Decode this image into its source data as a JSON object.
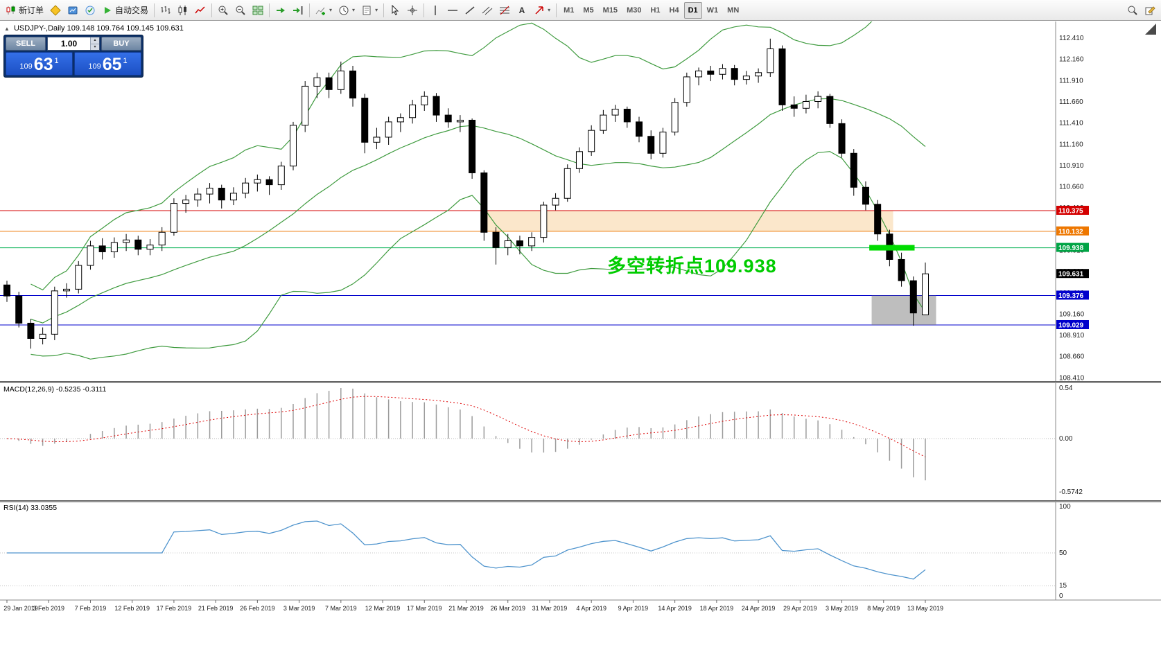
{
  "toolbar": {
    "items": [
      {
        "name": "new-order-button",
        "icon": "new-order-icon",
        "label": "新订单"
      },
      {
        "name": "metaeditor-button",
        "icon": "metaeditor-icon"
      },
      {
        "name": "market-button",
        "icon": "market-icon"
      },
      {
        "name": "signals-button",
        "icon": "signals-icon"
      },
      {
        "name": "autotrading-button",
        "icon": "autotrading-icon",
        "label": "自动交易"
      },
      {
        "type": "sep"
      },
      {
        "name": "bars-chart-button",
        "icon": "bar-chart-icon"
      },
      {
        "name": "candlestick-chart-button",
        "icon": "candlestick-chart-icon"
      },
      {
        "name": "line-chart-button",
        "icon": "line-chart-icon"
      },
      {
        "type": "sep"
      },
      {
        "name": "zoom-in-button",
        "icon": "zoom-in-icon"
      },
      {
        "name": "zoom-out-button",
        "icon": "zoom-out-icon"
      },
      {
        "name": "tile-windows-button",
        "icon": "tile-windows-icon"
      },
      {
        "type": "sep"
      },
      {
        "name": "auto-scroll-button",
        "icon": "auto-scroll-icon"
      },
      {
        "name": "chart-shift-button",
        "icon": "chart-shift-icon"
      },
      {
        "type": "sep"
      },
      {
        "name": "indicators-button",
        "icon": "indicators-icon",
        "dropdown": true
      },
      {
        "name": "periods-button",
        "icon": "clock-icon",
        "dropdown": true
      },
      {
        "name": "templates-button",
        "icon": "template-icon",
        "dropdown": true
      },
      {
        "type": "sep"
      },
      {
        "name": "cursor-button",
        "icon": "cursor-icon"
      },
      {
        "name": "crosshair-button",
        "icon": "crosshair-icon"
      },
      {
        "type": "sep"
      },
      {
        "name": "vertical-line-button",
        "icon": "vertical-line-icon"
      },
      {
        "name": "horizontal-line-button",
        "icon": "horizontal-line-icon"
      },
      {
        "name": "trendline-button",
        "icon": "trendline-icon"
      },
      {
        "name": "channel-button",
        "icon": "channel-icon"
      },
      {
        "name": "fibonacci-button",
        "icon": "fibonacci-icon"
      },
      {
        "name": "text-button",
        "icon": "text-icon"
      },
      {
        "name": "arrows-button",
        "icon": "arrow-icon",
        "dropdown": true
      },
      {
        "type": "sep"
      },
      {
        "name": "tf-m1-button",
        "label": "M1",
        "tf": true
      },
      {
        "name": "tf-m5-button",
        "label": "M5",
        "tf": true
      },
      {
        "name": "tf-m15-button",
        "label": "M15",
        "tf": true
      },
      {
        "name": "tf-m30-button",
        "label": "M30",
        "tf": true
      },
      {
        "name": "tf-h1-button",
        "label": "H1",
        "tf": true
      },
      {
        "name": "tf-h4-button",
        "label": "H4",
        "tf": true
      },
      {
        "name": "tf-d1-button",
        "label": "D1",
        "tf": true,
        "active": true
      },
      {
        "name": "tf-w1-button",
        "label": "W1",
        "tf": true
      },
      {
        "name": "tf-mn-button",
        "label": "MN",
        "tf": true
      },
      {
        "type": "spacer"
      },
      {
        "name": "search-button",
        "icon": "search-icon"
      },
      {
        "name": "compose-button",
        "icon": "compose-icon"
      }
    ]
  },
  "quote_bar": {
    "marker": "▲",
    "symbol": "USDJPY-,Daily",
    "ohlc": "109.148 109.764 109.145 109.631"
  },
  "one_click": {
    "sell_label": "SELL",
    "buy_label": "BUY",
    "volume": "1.00",
    "sell": {
      "prefix": "109",
      "big": "63",
      "sup": "1"
    },
    "buy": {
      "prefix": "109",
      "big": "65",
      "sup": "1"
    }
  },
  "annotation": {
    "text": "多空转折点109.938",
    "color": "#00cc00"
  },
  "indicators": {
    "macd": "MACD(12,26,9) -0.5235 -0.3111",
    "rsi": "RSI(14) 33.0355"
  },
  "chart_data": {
    "type": "candlestick",
    "symbol": "USDJPY",
    "timeframe": "Daily",
    "candles": [
      [
        109.5,
        109.55,
        109.3,
        109.37
      ],
      [
        109.37,
        109.42,
        109.0,
        109.05
      ],
      [
        109.05,
        109.1,
        108.75,
        108.87
      ],
      [
        108.87,
        109.0,
        108.8,
        108.92
      ],
      [
        108.92,
        109.48,
        108.85,
        109.43
      ],
      [
        109.43,
        109.52,
        109.35,
        109.45
      ],
      [
        109.45,
        109.78,
        109.4,
        109.73
      ],
      [
        109.73,
        110.02,
        109.68,
        109.96
      ],
      [
        109.96,
        110.05,
        109.8,
        109.89
      ],
      [
        109.89,
        110.06,
        109.82,
        110.0
      ],
      [
        110.0,
        110.1,
        109.9,
        110.03
      ],
      [
        110.03,
        110.08,
        109.85,
        109.92
      ],
      [
        109.92,
        110.04,
        109.85,
        109.97
      ],
      [
        109.97,
        110.18,
        109.9,
        110.12
      ],
      [
        110.12,
        110.52,
        110.08,
        110.46
      ],
      [
        110.46,
        110.56,
        110.35,
        110.5
      ],
      [
        110.5,
        110.64,
        110.42,
        110.57
      ],
      [
        110.57,
        110.7,
        110.46,
        110.64
      ],
      [
        110.64,
        110.68,
        110.4,
        110.5
      ],
      [
        110.5,
        110.65,
        110.44,
        110.58
      ],
      [
        110.58,
        110.76,
        110.52,
        110.7
      ],
      [
        110.7,
        110.8,
        110.6,
        110.74
      ],
      [
        110.74,
        110.78,
        110.56,
        110.68
      ],
      [
        110.68,
        110.95,
        110.62,
        110.9
      ],
      [
        110.9,
        111.42,
        110.85,
        111.38
      ],
      [
        111.38,
        111.9,
        111.3,
        111.84
      ],
      [
        111.84,
        112.0,
        111.7,
        111.94
      ],
      [
        111.94,
        112.0,
        111.7,
        111.8
      ],
      [
        111.8,
        112.13,
        111.75,
        112.02
      ],
      [
        112.02,
        112.08,
        111.6,
        111.7
      ],
      [
        111.7,
        111.75,
        111.05,
        111.18
      ],
      [
        111.18,
        111.35,
        111.1,
        111.24
      ],
      [
        111.24,
        111.48,
        111.15,
        111.42
      ],
      [
        111.42,
        111.52,
        111.3,
        111.47
      ],
      [
        111.47,
        111.68,
        111.4,
        111.62
      ],
      [
        111.62,
        111.78,
        111.55,
        111.72
      ],
      [
        111.72,
        111.76,
        111.42,
        111.5
      ],
      [
        111.5,
        111.58,
        111.35,
        111.42
      ],
      [
        111.42,
        111.5,
        111.3,
        111.44
      ],
      [
        111.44,
        111.46,
        110.75,
        110.82
      ],
      [
        110.82,
        110.85,
        110.02,
        110.12
      ],
      [
        110.12,
        110.18,
        109.74,
        109.94
      ],
      [
        109.94,
        110.1,
        109.85,
        110.02
      ],
      [
        110.02,
        110.08,
        109.86,
        109.96
      ],
      [
        109.96,
        110.12,
        109.9,
        110.06
      ],
      [
        110.06,
        110.48,
        110.0,
        110.44
      ],
      [
        110.44,
        110.58,
        110.38,
        110.52
      ],
      [
        110.52,
        110.92,
        110.48,
        110.87
      ],
      [
        110.87,
        111.12,
        110.82,
        111.07
      ],
      [
        111.07,
        111.38,
        111.02,
        111.32
      ],
      [
        111.32,
        111.56,
        111.28,
        111.5
      ],
      [
        111.5,
        111.62,
        111.42,
        111.57
      ],
      [
        111.57,
        111.6,
        111.35,
        111.42
      ],
      [
        111.42,
        111.48,
        111.18,
        111.25
      ],
      [
        111.25,
        111.32,
        110.98,
        111.05
      ],
      [
        111.05,
        111.35,
        111.0,
        111.3
      ],
      [
        111.3,
        111.7,
        111.26,
        111.65
      ],
      [
        111.65,
        112.0,
        111.6,
        111.95
      ],
      [
        111.95,
        112.06,
        111.85,
        112.02
      ],
      [
        112.02,
        112.08,
        111.9,
        111.98
      ],
      [
        111.98,
        112.1,
        111.92,
        112.05
      ],
      [
        112.05,
        112.09,
        111.85,
        111.92
      ],
      [
        111.92,
        112.02,
        111.86,
        111.96
      ],
      [
        111.96,
        112.05,
        111.88,
        112.0
      ],
      [
        112.0,
        112.4,
        111.95,
        112.28
      ],
      [
        112.28,
        112.32,
        111.55,
        111.62
      ],
      [
        111.62,
        111.72,
        111.48,
        111.58
      ],
      [
        111.58,
        111.74,
        111.52,
        111.66
      ],
      [
        111.66,
        111.78,
        111.58,
        111.72
      ],
      [
        111.72,
        111.75,
        111.35,
        111.4
      ],
      [
        111.4,
        111.45,
        111.0,
        111.05
      ],
      [
        111.05,
        111.1,
        110.55,
        110.65
      ],
      [
        110.65,
        110.72,
        110.38,
        110.45
      ],
      [
        110.45,
        110.5,
        110.02,
        110.1
      ],
      [
        110.1,
        110.15,
        109.72,
        109.8
      ],
      [
        109.8,
        109.88,
        109.48,
        109.55
      ],
      [
        109.55,
        109.6,
        109.02,
        109.17
      ],
      [
        109.148,
        109.764,
        109.145,
        109.631
      ]
    ],
    "dates": [
      "29 Jan 2019",
      "3 Feb 2019",
      "7 Feb 2019",
      "12 Feb 2019",
      "17 Feb 2019",
      "21 Feb 2019",
      "26 Feb 2019",
      "3 Mar 2019",
      "7 Mar 2019",
      "12 Mar 2019",
      "17 Mar 2019",
      "21 Mar 2019",
      "26 Mar 2019",
      "31 Mar 2019",
      "4 Apr 2019",
      "9 Apr 2019",
      "14 Apr 2019",
      "18 Apr 2019",
      "24 Apr 2019",
      "29 Apr 2019",
      "3 May 2019",
      "8 May 2019",
      "13 May 2019"
    ],
    "levels": [
      {
        "price": 110.375,
        "color": "#d40000"
      },
      {
        "price": 110.132,
        "color": "#ee7700"
      },
      {
        "price": 109.938,
        "color": "#00b050"
      },
      {
        "price": 109.376,
        "color": "#0000cc"
      },
      {
        "price": 109.029,
        "color": "#0000cc"
      }
    ],
    "price_tags": [
      {
        "label": "110.375",
        "price": 110.375,
        "color": "#d40000"
      },
      {
        "label": "110.132",
        "price": 110.132,
        "color": "#ee7700"
      },
      {
        "label": "109.938",
        "price": 109.938,
        "color": "#00a445"
      },
      {
        "label": "109.631",
        "price": 109.631,
        "color": "#000000"
      },
      {
        "label": "109.376",
        "price": 109.376,
        "color": "#0000cc"
      },
      {
        "label": "109.029",
        "price": 109.029,
        "color": "#0000cc"
      }
    ],
    "price_axis_labels": [
      "112.410",
      "112.160",
      "111.910",
      "111.660",
      "111.410",
      "111.160",
      "110.910",
      "110.660",
      "110.410",
      "110.160",
      "109.910",
      "109.660",
      "109.410",
      "109.160",
      "108.910",
      "108.660",
      "108.410"
    ],
    "zones": {
      "rectangle": {
        "i1": 40,
        "i2": 74.3,
        "p1": 110.375,
        "p2": 110.132,
        "color": "#fbe7cb"
      },
      "gray_box": {
        "i1": 72.5,
        "i2": 77.9,
        "p1": 109.376,
        "p2": 109.029,
        "color": "rgba(125,125,125,0.5)"
      },
      "green_bar": {
        "i1": 72.3,
        "i2": 76.1,
        "price": 109.938,
        "color": "#00dc00",
        "thickness": 8
      }
    },
    "bollinger": {
      "period": 20,
      "deviations": 2,
      "color": "#3f9b3f"
    },
    "macd": {
      "fast": 12,
      "slow": 26,
      "signal": 9,
      "histogram_color": "#9c9c9c",
      "signal_color": "#dd0000",
      "current": "-0.5235",
      "signal_current": "-0.3111"
    },
    "rsi": {
      "period": 14,
      "current": "33.0355",
      "color": "#4f94cd",
      "levels": [
        50,
        15
      ]
    },
    "macd_axis": [
      "0.54",
      "0.00",
      "-0.5742"
    ],
    "rsi_axis": [
      "100",
      "50",
      "15",
      "0"
    ]
  }
}
